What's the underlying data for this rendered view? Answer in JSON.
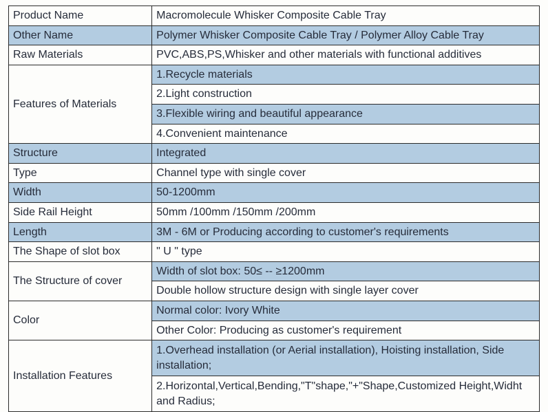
{
  "table": {
    "colors": {
      "shaded_bg": "#b3cce1",
      "plain_bg": "#fdfdfb",
      "border": "#2a2a2a",
      "text": "#262c3a"
    },
    "rows": [
      {
        "label": "Product Name",
        "value": "Macromolecule Whisker Composite Cable Tray",
        "shaded": false,
        "rowspan": 1
      },
      {
        "label": "Other Name",
        "value": "Polymer Whisker Composite Cable Tray / Polymer Alloy Cable Tray",
        "shaded": true,
        "rowspan": 1
      },
      {
        "label": "Raw Materials",
        "value": "PVC,ABS,PS,Whisker and other materials with functional additives",
        "shaded": false,
        "rowspan": 1
      },
      {
        "label": "Features of Materials",
        "values": [
          {
            "text": "1.Recycle materials",
            "shaded": true
          },
          {
            "text": "2.Light construction",
            "shaded": false
          },
          {
            "text": "3.Flexible wiring and beautiful appearance",
            "shaded": true
          },
          {
            "text": "4.Convenient maintenance",
            "shaded": false
          }
        ],
        "rowspan": 4
      },
      {
        "label": "Structure",
        "value": "Integrated",
        "shaded": true,
        "rowspan": 1
      },
      {
        "label": "Type",
        "value": "Channel type with single cover",
        "shaded": false,
        "rowspan": 1
      },
      {
        "label": "Width",
        "value": "50-1200mm",
        "shaded": true,
        "rowspan": 1
      },
      {
        "label": "Side Rail Height",
        "value": "50mm /100mm /150mm /200mm",
        "shaded": false,
        "rowspan": 1
      },
      {
        "label": "Length",
        "value": "3M - 6M or Producing according to customer's requirements",
        "shaded": true,
        "rowspan": 1
      },
      {
        "label": "The Shape of slot box",
        "value": "\" U \" type",
        "shaded": false,
        "rowspan": 1
      },
      {
        "label": "The Structure of cover",
        "values": [
          {
            "text": "Width of slot box: 50≤  --  ≥1200mm",
            "shaded": true
          },
          {
            "text": "Double hollow structure design with single layer cover",
            "shaded": false
          }
        ],
        "rowspan": 2
      },
      {
        "label": "Color",
        "values": [
          {
            "text": "Normal color: Ivory White",
            "shaded": true
          },
          {
            "text": "Other Color: Producing as customer's requirement",
            "shaded": false
          }
        ],
        "rowspan": 2
      },
      {
        "label": "Installation Features",
        "values": [
          {
            "text": "1.Overhead installation (or Aerial installation), Hoisting installation, Side installation;",
            "shaded": true,
            "tall": true
          },
          {
            "text": "2.Horizontal,Vertical,Bending,\"T\"shape,\"+\"Shape,Customized Height,Widht and Radius;",
            "shaded": false,
            "tall": true
          }
        ],
        "rowspan": 2
      }
    ]
  }
}
